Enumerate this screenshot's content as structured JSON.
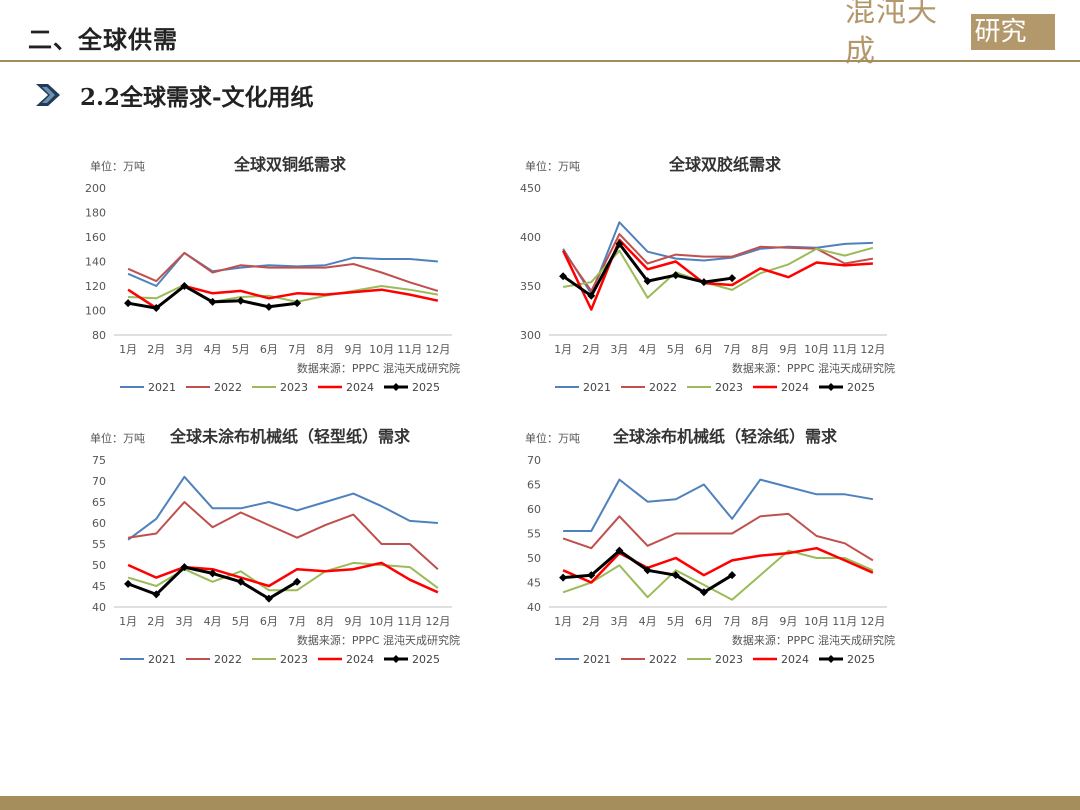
{
  "header": {
    "title": "二、全球供需"
  },
  "logo": {
    "left_text": "混沌天成",
    "right_text": "研究院"
  },
  "section": {
    "title": "2.2全球需求-文化用纸"
  },
  "colors": {
    "accent": "#a58d5c",
    "logo": "#b3986b",
    "arrow": "#1f3b57"
  },
  "chart_data": [
    {
      "type": "line",
      "title": "全球双铜纸需求",
      "unit": "单位：万吨",
      "source": "数据来源：PPPC  混沌天成研究院",
      "categories": [
        "1月",
        "2月",
        "3月",
        "4月",
        "5月",
        "6月",
        "7月",
        "8月",
        "9月",
        "10月",
        "11月",
        "12月"
      ],
      "ylim": [
        80,
        200
      ],
      "yticks": [
        80,
        100,
        120,
        140,
        160,
        180,
        200
      ],
      "series": [
        {
          "name": "2021",
          "color": "#4f81bd",
          "width": 2,
          "marker": false,
          "values": [
            130,
            120,
            147,
            132,
            135,
            137,
            136,
            137,
            143,
            142,
            142,
            140
          ]
        },
        {
          "name": "2022",
          "color": "#c0504d",
          "width": 2,
          "marker": false,
          "values": [
            134,
            124,
            147,
            131,
            137,
            135,
            135,
            135,
            138,
            131,
            123,
            116
          ]
        },
        {
          "name": "2023",
          "color": "#9bbb59",
          "width": 2,
          "marker": false,
          "values": [
            111,
            110,
            121,
            107,
            111,
            112,
            107,
            112,
            116,
            120,
            117,
            113
          ]
        },
        {
          "name": "2024",
          "color": "#ff0000",
          "width": 2.5,
          "marker": false,
          "values": [
            117,
            102,
            120,
            114,
            116,
            110,
            114,
            113,
            115,
            117,
            113,
            108
          ]
        },
        {
          "name": "2025",
          "color": "#000000",
          "width": 3,
          "marker": true,
          "values": [
            106,
            102,
            120,
            107,
            108,
            103,
            106,
            null,
            null,
            null,
            null,
            null
          ]
        }
      ]
    },
    {
      "type": "line",
      "title": "全球双胶纸需求",
      "unit": "单位：万吨",
      "source": "数据来源：PPPC  混沌天成研究院",
      "categories": [
        "1月",
        "2月",
        "3月",
        "4月",
        "5月",
        "6月",
        "7月",
        "8月",
        "9月",
        "10月",
        "11月",
        "12月"
      ],
      "ylim": [
        300,
        450
      ],
      "yticks": [
        300,
        350,
        400,
        450
      ],
      "series": [
        {
          "name": "2021",
          "color": "#4f81bd",
          "width": 2,
          "marker": false,
          "values": [
            388,
            342,
            415,
            385,
            378,
            376,
            379,
            388,
            390,
            389,
            393,
            394
          ]
        },
        {
          "name": "2022",
          "color": "#c0504d",
          "width": 2,
          "marker": false,
          "values": [
            386,
            345,
            403,
            373,
            382,
            380,
            380,
            390,
            389,
            388,
            373,
            378
          ]
        },
        {
          "name": "2023",
          "color": "#9bbb59",
          "width": 2,
          "marker": false,
          "values": [
            349,
            354,
            386,
            338,
            364,
            354,
            346,
            363,
            372,
            388,
            381,
            389
          ]
        },
        {
          "name": "2024",
          "color": "#ff0000",
          "width": 2.5,
          "marker": false,
          "values": [
            386,
            326,
            397,
            367,
            375,
            353,
            351,
            368,
            359,
            374,
            371,
            373
          ]
        },
        {
          "name": "2025",
          "color": "#000000",
          "width": 3,
          "marker": true,
          "values": [
            360,
            340,
            393,
            355,
            361,
            354,
            358,
            null,
            null,
            null,
            null,
            null
          ]
        }
      ]
    },
    {
      "type": "line",
      "title": "全球未涂布机械纸（轻型纸）需求",
      "unit": "单位：万吨",
      "source": "数据来源：PPPC  混沌天成研究院",
      "categories": [
        "1月",
        "2月",
        "3月",
        "4月",
        "5月",
        "6月",
        "7月",
        "8月",
        "9月",
        "10月",
        "11月",
        "12月"
      ],
      "ylim": [
        40,
        75
      ],
      "yticks": [
        40,
        45,
        50,
        55,
        60,
        65,
        70,
        75
      ],
      "series": [
        {
          "name": "2021",
          "color": "#4f81bd",
          "width": 2,
          "marker": false,
          "values": [
            56,
            61,
            71,
            63.5,
            63.5,
            65,
            63,
            65,
            67,
            64,
            60.5,
            60
          ]
        },
        {
          "name": "2022",
          "color": "#c0504d",
          "width": 2,
          "marker": false,
          "values": [
            56.5,
            57.5,
            65,
            59,
            62.5,
            59.5,
            56.5,
            59.5,
            62,
            55,
            55,
            49
          ]
        },
        {
          "name": "2023",
          "color": "#9bbb59",
          "width": 2,
          "marker": false,
          "values": [
            47,
            45,
            49,
            46,
            48.5,
            44,
            44,
            48.5,
            50.5,
            50,
            49.5,
            44.5
          ]
        },
        {
          "name": "2024",
          "color": "#ff0000",
          "width": 2.5,
          "marker": false,
          "values": [
            50,
            47,
            49.5,
            49,
            47,
            45,
            49,
            48.5,
            49,
            50.5,
            46.5,
            43.5
          ]
        },
        {
          "name": "2025",
          "color": "#000000",
          "width": 3,
          "marker": true,
          "values": [
            45.5,
            43,
            49.5,
            48,
            46,
            42,
            46,
            null,
            null,
            null,
            null,
            null
          ]
        }
      ]
    },
    {
      "type": "line",
      "title": "全球涂布机械纸（轻涂纸）需求",
      "unit": "单位：万吨",
      "source": "数据来源：PPPC  混沌天成研究院",
      "categories": [
        "1月",
        "2月",
        "3月",
        "4月",
        "5月",
        "6月",
        "7月",
        "8月",
        "9月",
        "10月",
        "11月",
        "12月"
      ],
      "ylim": [
        40,
        70
      ],
      "yticks": [
        40,
        45,
        50,
        55,
        60,
        65,
        70
      ],
      "series": [
        {
          "name": "2021",
          "color": "#4f81bd",
          "width": 2,
          "marker": false,
          "values": [
            55.5,
            55.5,
            66,
            61.5,
            62,
            65,
            58,
            66,
            64.5,
            63,
            63,
            62
          ]
        },
        {
          "name": "2022",
          "color": "#c0504d",
          "width": 2,
          "marker": false,
          "values": [
            54,
            52,
            58.5,
            52.5,
            55,
            55,
            55,
            58.5,
            59,
            54.5,
            53,
            49.5
          ]
        },
        {
          "name": "2023",
          "color": "#9bbb59",
          "width": 2,
          "marker": false,
          "values": [
            43,
            45,
            48.5,
            42,
            47.5,
            44.5,
            41.5,
            46.5,
            51.5,
            50,
            50,
            47.5
          ]
        },
        {
          "name": "2024",
          "color": "#ff0000",
          "width": 2.5,
          "marker": false,
          "values": [
            47.5,
            45,
            51,
            48,
            50,
            46.5,
            49.5,
            50.5,
            51,
            52,
            49.5,
            47
          ]
        },
        {
          "name": "2025",
          "color": "#000000",
          "width": 3,
          "marker": true,
          "values": [
            46,
            46.5,
            51.5,
            47.5,
            46.5,
            43,
            46.5,
            null,
            null,
            null,
            null,
            null
          ]
        }
      ]
    }
  ]
}
